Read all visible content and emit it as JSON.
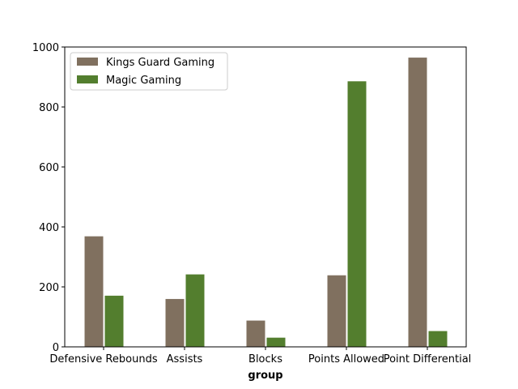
{
  "chart_data": {
    "type": "bar",
    "title": "",
    "xlabel": "group",
    "ylabel": "",
    "categories": [
      "Defensive Rebounds",
      "Assists",
      "Blocks",
      "Points Allowed",
      "Point Differential"
    ],
    "series": [
      {
        "name": "Kings Guard Gaming",
        "color": "#80705f",
        "values": [
          370,
          161,
          89,
          240,
          966
        ]
      },
      {
        "name": "Magic Gaming",
        "color": "#537e2e",
        "values": [
          172,
          243,
          32,
          887,
          54
        ]
      }
    ],
    "ylim": [
      0,
      1000
    ],
    "yticks": [
      0,
      200,
      400,
      600,
      800,
      1000
    ],
    "grid": false,
    "legend_position": "top-left"
  }
}
